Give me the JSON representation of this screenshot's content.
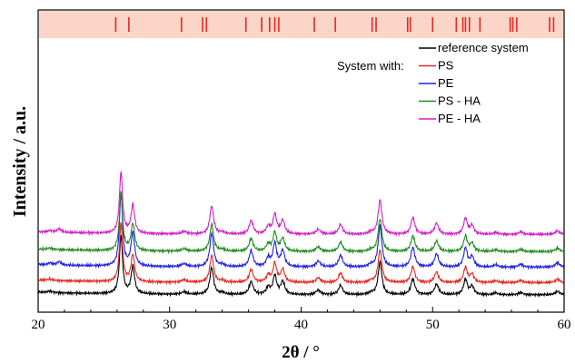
{
  "chart_data": {
    "type": "line",
    "xlabel": "2θ / °",
    "ylabel": "Intensity / a.u.",
    "xlim": [
      20,
      60
    ],
    "x_ticks": [
      "20",
      "30",
      "40",
      "50",
      "60"
    ],
    "y_ticks_labeled": false,
    "grid": false,
    "legend": {
      "placement": "top-right",
      "header": "System with:",
      "entries": [
        {
          "label": "reference system",
          "color": "#000000"
        },
        {
          "label": "PS",
          "color": "#e8261f"
        },
        {
          "label": "PE",
          "color": "#1f1fe8"
        },
        {
          "label": "PS - HA",
          "color": "#1e8c1e"
        },
        {
          "label": "PE - HA",
          "color": "#d21cc8"
        }
      ]
    },
    "reference_band": {
      "color": "#fbd5c8",
      "tick_color": "#e8261f",
      "positions": [
        25.9,
        26.9,
        30.9,
        32.5,
        32.8,
        35.8,
        37.0,
        37.6,
        38.0,
        38.3,
        41.0,
        42.6,
        45.4,
        45.7,
        48.1,
        48.3,
        50.0,
        51.8,
        52.3,
        52.5,
        52.8,
        53.6,
        55.9,
        56.1,
        56.4,
        58.9,
        59.2
      ]
    },
    "peaks": [
      {
        "x": 20.9,
        "h": 0.25,
        "w": 0.2
      },
      {
        "x": 26.3,
        "h": 10.0,
        "w": 0.14
      },
      {
        "x": 27.2,
        "h": 4.6,
        "w": 0.16
      },
      {
        "x": 31.1,
        "h": 0.4,
        "w": 0.22
      },
      {
        "x": 33.2,
        "h": 4.6,
        "w": 0.17
      },
      {
        "x": 34.0,
        "h": 0.3,
        "w": 0.2
      },
      {
        "x": 36.2,
        "h": 2.2,
        "w": 0.18
      },
      {
        "x": 37.5,
        "h": 1.2,
        "w": 0.18
      },
      {
        "x": 38.0,
        "h": 3.2,
        "w": 0.16
      },
      {
        "x": 38.6,
        "h": 2.2,
        "w": 0.18
      },
      {
        "x": 41.3,
        "h": 0.8,
        "w": 0.2
      },
      {
        "x": 43.0,
        "h": 1.6,
        "w": 0.18
      },
      {
        "x": 45.3,
        "h": 0.3,
        "w": 0.2
      },
      {
        "x": 46.0,
        "h": 5.6,
        "w": 0.17
      },
      {
        "x": 48.5,
        "h": 2.7,
        "w": 0.18
      },
      {
        "x": 50.3,
        "h": 1.8,
        "w": 0.18
      },
      {
        "x": 52.5,
        "h": 2.6,
        "w": 0.17
      },
      {
        "x": 53.0,
        "h": 1.4,
        "w": 0.17
      },
      {
        "x": 54.8,
        "h": 0.3,
        "w": 0.2
      },
      {
        "x": 56.7,
        "h": 0.4,
        "w": 0.2
      },
      {
        "x": 59.5,
        "h": 0.6,
        "w": 0.2
      }
    ],
    "series": [
      {
        "name": "reference system",
        "color": "#000000",
        "offset": 0.0,
        "scale": 1.0,
        "extra_peaks": []
      },
      {
        "name": "PS",
        "color": "#e8261f",
        "offset": 0.7,
        "scale": 1.0,
        "extra_peaks": []
      },
      {
        "name": "PE",
        "color": "#1f1fe8",
        "offset": 1.6,
        "scale": 1.25,
        "extra_peaks": [
          {
            "x": 21.6,
            "h": 0.5,
            "w": 0.18
          }
        ]
      },
      {
        "name": "PS - HA",
        "color": "#1e8c1e",
        "offset": 2.5,
        "scale": 1.0,
        "extra_peaks": []
      },
      {
        "name": "PE - HA",
        "color": "#d21cc8",
        "offset": 3.5,
        "scale": 1.05,
        "extra_peaks": [
          {
            "x": 21.6,
            "h": 0.6,
            "w": 0.18
          }
        ]
      }
    ]
  }
}
